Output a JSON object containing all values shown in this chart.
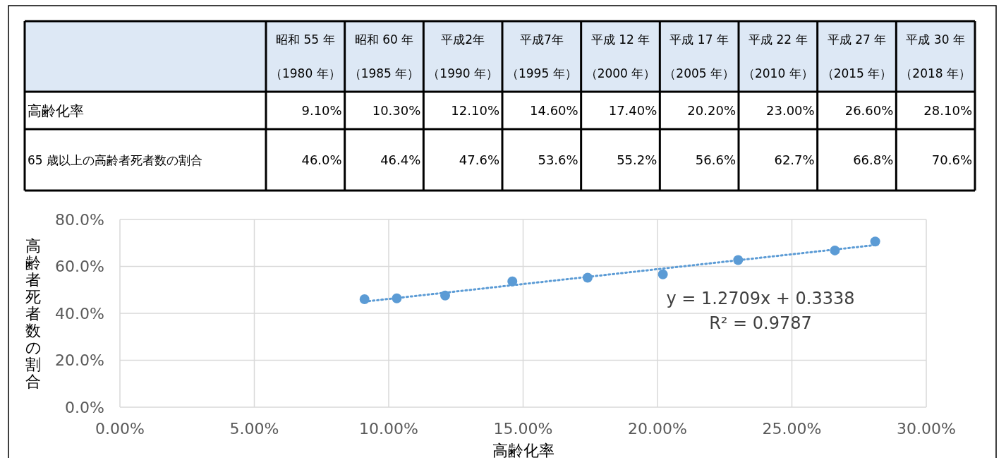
{
  "chart_data": {
    "type": "scatter",
    "xlabel": "高齢化率",
    "ylabel": "高齢者死者数の割合",
    "annotations": [
      "高齢化率",
      "65 歳以上の高齢者死者数の割合",
      "y = 1.2709x + 0.3338",
      "R² = 0.9787",
      "昭和 55 年",
      "（1980 年）",
      "昭和 60 年",
      "（1985 年）",
      "平成2年",
      "（1990 年）",
      "平成7年",
      "（1995 年）",
      "平成 12 年",
      "（2000 年）",
      "平成 17 年",
      "（2005 年）",
      "平成 22 年",
      "（2010 年）",
      "平成 27 年",
      "（2015 年）",
      "平成 30 年",
      "（2018 年）",
      "9.10%",
      "10.30%",
      "12.10%",
      "14.60%",
      "17.40%",
      "20.20%",
      "23.00%",
      "26.60%",
      "28.10%",
      "46.0%",
      "46.4%",
      "47.6%",
      "53.6%",
      "55.2%",
      "56.6%",
      "62.7%",
      "66.8%",
      "70.6%"
    ],
    "series": [
      {
        "color": "#5b9bd5",
        "x": [
          9.1,
          10.3,
          12.1,
          14.6,
          17.4,
          20.2,
          23.0,
          26.6,
          28.1
        ],
        "values": [
          46.0,
          46.4,
          47.6,
          53.6,
          55.2,
          56.6,
          62.7,
          66.8,
          70.6
        ],
        "marker": "circle"
      },
      {
        "type": "line",
        "color": "#5b9bd5",
        "line_style": "dotted",
        "marker": "none",
        "x": [
          9.1,
          28.1
        ],
        "values": [
          45.0,
          69.1
        ]
      }
    ],
    "xlim": [
      0,
      30
    ],
    "xticks": [
      {
        "value": 0,
        "label": "0.00%"
      },
      {
        "value": 5,
        "label": "5.00%"
      },
      {
        "value": 10,
        "label": "10.00%"
      },
      {
        "value": 15,
        "label": "15.00%"
      },
      {
        "value": 20,
        "label": "20.00%"
      },
      {
        "value": 25,
        "label": "25.00%"
      },
      {
        "value": 30,
        "label": "30.00%"
      }
    ],
    "ylim": [
      0,
      80
    ],
    "yticks": [
      {
        "value": 0,
        "label": "0.0%"
      },
      {
        "value": 20,
        "label": "20.0%"
      },
      {
        "value": 40,
        "label": "40.0%"
      },
      {
        "value": 60,
        "label": "60.0%"
      },
      {
        "value": 80,
        "label": "80.0%"
      }
    ],
    "grid": true
  }
}
